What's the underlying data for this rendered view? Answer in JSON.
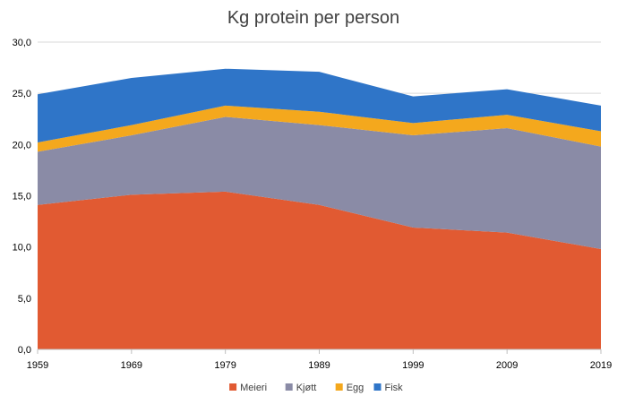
{
  "chart_data": {
    "type": "area",
    "stacked": true,
    "title": "Kg protein per person",
    "xlabel": "",
    "ylabel": "",
    "x": [
      "1959",
      "1969",
      "1979",
      "1989",
      "1999",
      "2009",
      "2019"
    ],
    "ylim": [
      0,
      30
    ],
    "yticks": [
      "0,0",
      "5,0",
      "10,0",
      "15,0",
      "20,0",
      "25,0",
      "30,0"
    ],
    "grid": true,
    "legend_position": "bottom",
    "series": [
      {
        "name": "Meieri",
        "color": "#e15a32",
        "values": [
          14.1,
          15.1,
          15.4,
          14.1,
          11.9,
          11.4,
          9.8
        ]
      },
      {
        "name": "Kjøtt",
        "color": "#8a8ba6",
        "values": [
          5.2,
          5.8,
          7.3,
          7.8,
          9.0,
          10.2,
          10.0
        ]
      },
      {
        "name": "Egg",
        "color": "#f4a81d",
        "values": [
          0.9,
          1.0,
          1.1,
          1.3,
          1.2,
          1.3,
          1.5
        ]
      },
      {
        "name": "Fisk",
        "color": "#2f75c8",
        "values": [
          4.7,
          4.6,
          3.6,
          3.9,
          2.6,
          2.5,
          2.5
        ]
      }
    ]
  }
}
